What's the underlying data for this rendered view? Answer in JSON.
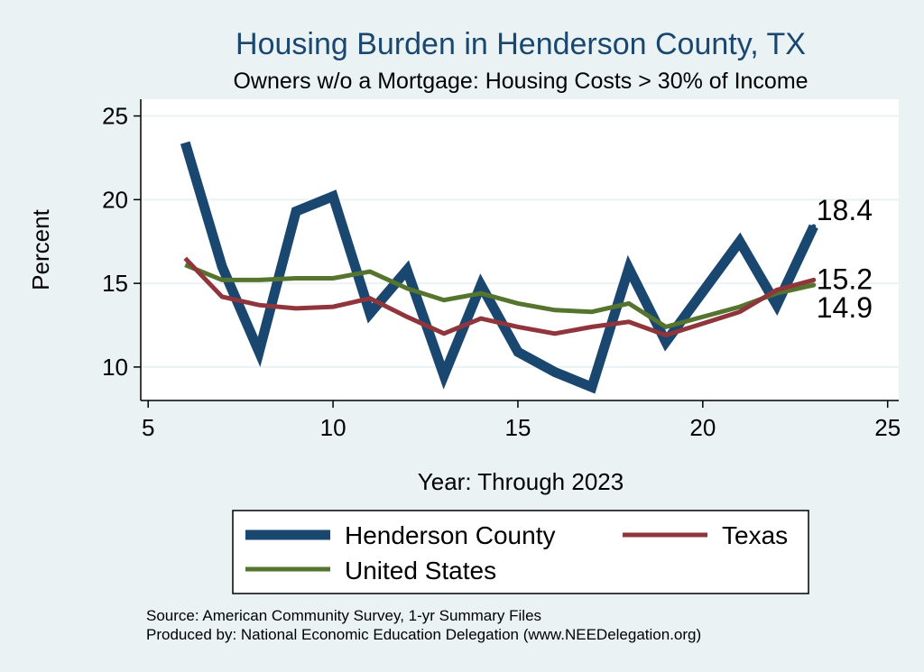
{
  "chart_data": {
    "type": "line",
    "title": "Housing Burden in Henderson County, TX",
    "subtitle": "Owners w/o a Mortgage: Housing Costs > 30% of Income",
    "xlabel": "Year: Through 2023",
    "ylabel": "Percent",
    "xlim": [
      4.8,
      25.3
    ],
    "ylim": [
      8.0,
      26.0
    ],
    "x_ticks": [
      5,
      10,
      15,
      20,
      25
    ],
    "y_ticks": [
      10,
      15,
      20,
      25
    ],
    "grid": true,
    "legend_position": "bottom",
    "series": [
      {
        "name": "Henderson County",
        "color": "#1a476f",
        "x": [
          6,
          7,
          8,
          9,
          10,
          11,
          12,
          13,
          14,
          15,
          16,
          17,
          18,
          19,
          21,
          22,
          23
        ],
        "values": [
          23.4,
          16.0,
          10.9,
          19.3,
          20.2,
          13.2,
          15.8,
          9.5,
          14.9,
          10.9,
          9.7,
          8.8,
          15.9,
          11.5,
          17.5,
          13.7,
          18.4
        ],
        "end_label": "18.4"
      },
      {
        "name": "Texas",
        "color": "#90353b",
        "x": [
          6,
          7,
          8,
          9,
          10,
          11,
          12,
          13,
          14,
          15,
          16,
          17,
          18,
          19,
          21,
          22,
          23
        ],
        "values": [
          16.5,
          14.2,
          13.7,
          13.5,
          13.6,
          14.1,
          13.0,
          12.0,
          12.9,
          12.4,
          12.0,
          12.4,
          12.7,
          11.9,
          13.3,
          14.6,
          15.2
        ],
        "end_label": "15.2"
      },
      {
        "name": "United States",
        "color": "#55752f",
        "x": [
          6,
          7,
          8,
          9,
          10,
          11,
          12,
          13,
          14,
          15,
          16,
          17,
          18,
          19,
          21,
          22,
          23
        ],
        "values": [
          16.1,
          15.2,
          15.2,
          15.3,
          15.3,
          15.7,
          14.7,
          14.0,
          14.4,
          13.8,
          13.4,
          13.3,
          13.8,
          12.4,
          13.6,
          14.4,
          14.9
        ],
        "end_label": "14.9"
      }
    ]
  },
  "legend": {
    "items": [
      "Henderson County",
      "Texas",
      "United States"
    ]
  },
  "notes": {
    "source": "Source: American Community Survey, 1-yr Summary Files",
    "produced": "Produced by: National Economic Education Delegation (www.NEEDelegation.org)"
  }
}
